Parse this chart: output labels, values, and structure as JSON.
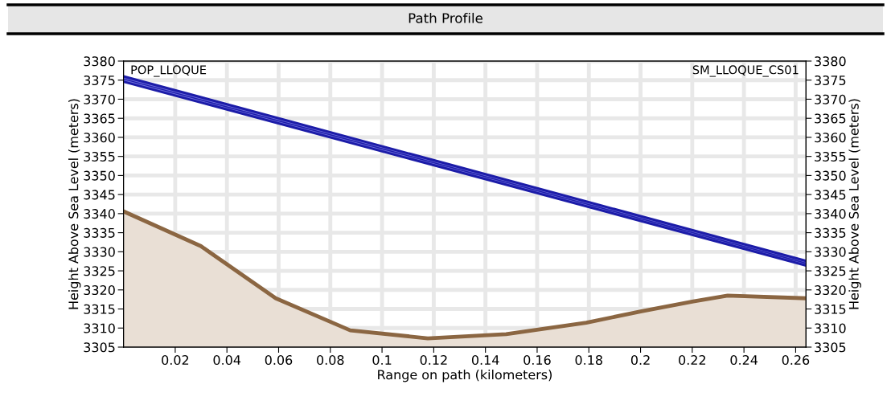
{
  "chart_data": {
    "type": "area",
    "title": "Path Profile",
    "xlabel": "Range on path (kilometers)",
    "ylabel": "Height Above Sea Level (meters)",
    "y2label": "Height Above Sea Level (meters)",
    "annotations": [
      "POP_LLOQUE",
      "SM_LLOQUE_CS01"
    ],
    "series": [
      {
        "type": "line",
        "color": "#1c1ca8",
        "x": [
          0,
          0.264
        ],
        "values": [
          3375.3,
          3327
        ],
        "lower": [
          3374.6,
          3326.4
        ],
        "upper": [
          3376,
          3327.6
        ]
      },
      {
        "color": "#8b6642",
        "x": [
          0,
          0.0299,
          0.0589,
          0.0877,
          0.1177,
          0.148,
          0.179,
          0.2004,
          0.2204,
          0.2337,
          0.264
        ],
        "values": [
          3340.6,
          3331.5,
          3317.8,
          3309.4,
          3307.3,
          3308.4,
          3311.4,
          3314.4,
          3317,
          3318.5,
          3317.8
        ]
      }
    ],
    "xlim": [
      0,
      0.264
    ],
    "xticks": [
      0.02,
      0.04,
      0.06,
      0.08,
      0.1,
      0.12,
      0.14,
      0.16,
      0.18,
      0.2,
      0.22,
      0.24,
      0.26
    ],
    "ylim": [
      3305,
      3380
    ],
    "yticks": [
      3305,
      3310,
      3315,
      3320,
      3325,
      3330,
      3335,
      3340,
      3345,
      3350,
      3355,
      3360,
      3365,
      3370,
      3375,
      3380
    ],
    "y2lim": [
      3305,
      3380
    ],
    "y2ticks": [
      3305,
      3310,
      3315,
      3320,
      3325,
      3330,
      3335,
      3340,
      3345,
      3350,
      3355,
      3360,
      3365,
      3370,
      3375,
      3380
    ],
    "grid": true
  }
}
